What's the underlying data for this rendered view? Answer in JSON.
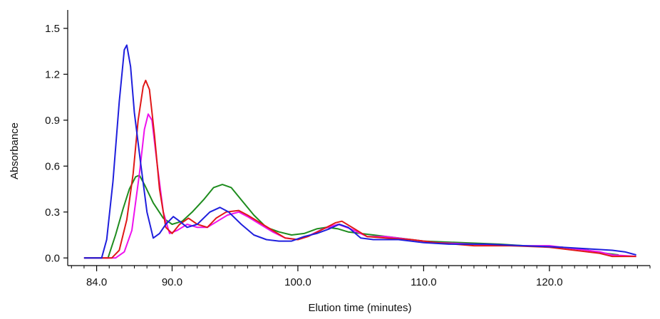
{
  "chart_data": {
    "type": "line",
    "title": "",
    "xlabel": "Elution time (minutes)",
    "ylabel": "Absorbance",
    "xlim": [
      81.7,
      128.0
    ],
    "ylim": [
      -0.05,
      1.62
    ],
    "x_ticks": [
      84,
      90,
      100,
      110,
      120
    ],
    "x_tick_labels": [
      "84.0",
      "90.0",
      "100.0",
      "110.0",
      "120.0"
    ],
    "y_ticks": [
      0.0,
      0.3,
      0.6,
      0.9,
      1.2,
      1.5
    ],
    "y_tick_labels": [
      "0.0",
      "0.3",
      "0.6",
      "0.9",
      "1.2",
      "1.5"
    ],
    "grid": false,
    "legend": "none",
    "series": [
      {
        "color": "#1f1fdd",
        "points": [
          [
            83.0,
            0.0
          ],
          [
            84.4,
            0.0
          ],
          [
            84.8,
            0.12
          ],
          [
            85.3,
            0.5
          ],
          [
            85.8,
            1.02
          ],
          [
            86.2,
            1.36
          ],
          [
            86.4,
            1.39
          ],
          [
            86.7,
            1.25
          ],
          [
            87.0,
            0.95
          ],
          [
            87.5,
            0.62
          ],
          [
            88.0,
            0.3
          ],
          [
            88.5,
            0.13
          ],
          [
            89.0,
            0.16
          ],
          [
            89.5,
            0.22
          ],
          [
            90.1,
            0.27
          ],
          [
            90.6,
            0.24
          ],
          [
            91.2,
            0.2
          ],
          [
            92.0,
            0.22
          ],
          [
            93.0,
            0.3
          ],
          [
            93.8,
            0.33
          ],
          [
            94.5,
            0.3
          ],
          [
            95.5,
            0.22
          ],
          [
            96.5,
            0.15
          ],
          [
            97.5,
            0.12
          ],
          [
            98.5,
            0.11
          ],
          [
            99.5,
            0.11
          ],
          [
            100.5,
            0.14
          ],
          [
            101.5,
            0.16
          ],
          [
            102.5,
            0.19
          ],
          [
            103.3,
            0.22
          ],
          [
            104.0,
            0.2
          ],
          [
            105.0,
            0.13
          ],
          [
            106.0,
            0.12
          ],
          [
            108.0,
            0.12
          ],
          [
            110.0,
            0.1
          ],
          [
            112.0,
            0.09
          ],
          [
            115.0,
            0.09
          ],
          [
            118.0,
            0.08
          ],
          [
            121.0,
            0.07
          ],
          [
            123.0,
            0.06
          ],
          [
            125.0,
            0.05
          ],
          [
            126.0,
            0.04
          ],
          [
            126.9,
            0.02
          ]
        ]
      },
      {
        "color": "#e01818",
        "points": [
          [
            83.0,
            0.0
          ],
          [
            85.2,
            0.0
          ],
          [
            85.8,
            0.05
          ],
          [
            86.4,
            0.25
          ],
          [
            86.9,
            0.55
          ],
          [
            87.3,
            0.9
          ],
          [
            87.7,
            1.12
          ],
          [
            87.9,
            1.16
          ],
          [
            88.2,
            1.1
          ],
          [
            88.6,
            0.8
          ],
          [
            89.0,
            0.45
          ],
          [
            89.5,
            0.2
          ],
          [
            90.0,
            0.16
          ],
          [
            90.6,
            0.22
          ],
          [
            91.3,
            0.26
          ],
          [
            92.0,
            0.22
          ],
          [
            92.8,
            0.2
          ],
          [
            93.5,
            0.26
          ],
          [
            94.3,
            0.3
          ],
          [
            95.3,
            0.31
          ],
          [
            96.0,
            0.28
          ],
          [
            97.0,
            0.23
          ],
          [
            98.0,
            0.18
          ],
          [
            99.0,
            0.13
          ],
          [
            100.0,
            0.12
          ],
          [
            100.8,
            0.14
          ],
          [
            101.8,
            0.18
          ],
          [
            103.0,
            0.23
          ],
          [
            103.5,
            0.24
          ],
          [
            104.5,
            0.19
          ],
          [
            105.5,
            0.14
          ],
          [
            107.0,
            0.13
          ],
          [
            109.0,
            0.12
          ],
          [
            111.0,
            0.1
          ],
          [
            114.0,
            0.08
          ],
          [
            117.0,
            0.08
          ],
          [
            120.0,
            0.07
          ],
          [
            122.0,
            0.05
          ],
          [
            124.0,
            0.03
          ],
          [
            125.0,
            0.01
          ],
          [
            126.9,
            0.01
          ]
        ]
      },
      {
        "color": "#ee11ee",
        "points": [
          [
            83.0,
            0.0
          ],
          [
            85.5,
            0.0
          ],
          [
            86.2,
            0.04
          ],
          [
            86.8,
            0.18
          ],
          [
            87.4,
            0.55
          ],
          [
            87.8,
            0.84
          ],
          [
            88.1,
            0.94
          ],
          [
            88.4,
            0.9
          ],
          [
            88.8,
            0.62
          ],
          [
            89.3,
            0.3
          ],
          [
            89.8,
            0.16
          ],
          [
            90.4,
            0.18
          ],
          [
            91.2,
            0.22
          ],
          [
            92.0,
            0.2
          ],
          [
            92.8,
            0.2
          ],
          [
            93.6,
            0.24
          ],
          [
            94.4,
            0.28
          ],
          [
            95.3,
            0.3
          ],
          [
            96.0,
            0.27
          ],
          [
            97.0,
            0.22
          ],
          [
            98.0,
            0.17
          ],
          [
            99.0,
            0.13
          ],
          [
            100.0,
            0.12
          ],
          [
            101.0,
            0.15
          ],
          [
            102.0,
            0.19
          ],
          [
            103.2,
            0.22
          ],
          [
            104.2,
            0.19
          ],
          [
            105.5,
            0.14
          ],
          [
            107.0,
            0.14
          ],
          [
            109.0,
            0.12
          ],
          [
            111.0,
            0.1
          ],
          [
            114.0,
            0.09
          ],
          [
            117.0,
            0.08
          ],
          [
            120.0,
            0.08
          ],
          [
            122.0,
            0.06
          ],
          [
            124.0,
            0.04
          ],
          [
            125.0,
            0.02
          ],
          [
            126.9,
            0.01
          ]
        ]
      },
      {
        "color": "#1e8c1e",
        "points": [
          [
            83.0,
            0.0
          ],
          [
            84.9,
            0.0
          ],
          [
            85.5,
            0.15
          ],
          [
            86.1,
            0.32
          ],
          [
            86.6,
            0.45
          ],
          [
            87.1,
            0.53
          ],
          [
            87.4,
            0.54
          ],
          [
            87.8,
            0.48
          ],
          [
            88.5,
            0.36
          ],
          [
            89.3,
            0.26
          ],
          [
            90.0,
            0.22
          ],
          [
            90.8,
            0.24
          ],
          [
            91.6,
            0.3
          ],
          [
            92.5,
            0.38
          ],
          [
            93.3,
            0.46
          ],
          [
            94.0,
            0.48
          ],
          [
            94.7,
            0.46
          ],
          [
            95.5,
            0.38
          ],
          [
            96.5,
            0.28
          ],
          [
            97.5,
            0.2
          ],
          [
            98.5,
            0.17
          ],
          [
            99.5,
            0.15
          ],
          [
            100.5,
            0.16
          ],
          [
            101.5,
            0.19
          ],
          [
            102.3,
            0.2
          ],
          [
            103.2,
            0.19
          ],
          [
            104.0,
            0.17
          ],
          [
            105.0,
            0.16
          ],
          [
            106.0,
            0.15
          ],
          [
            108.0,
            0.13
          ],
          [
            110.0,
            0.11
          ],
          [
            113.0,
            0.1
          ],
          [
            116.0,
            0.09
          ],
          [
            118.0,
            0.08
          ],
          [
            121.0,
            0.07
          ],
          [
            123.0,
            0.05
          ],
          [
            124.5,
            0.03
          ],
          [
            125.5,
            0.02
          ]
        ]
      }
    ]
  }
}
